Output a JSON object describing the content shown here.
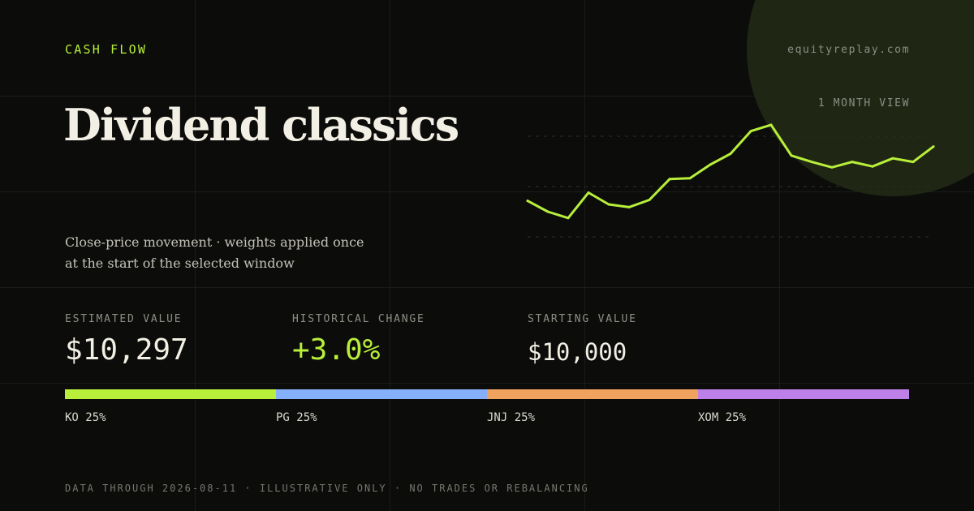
{
  "header": {
    "eyebrow": "CASH FLOW",
    "site": "equityreplay.com",
    "title": "Dividend classics",
    "subtitle_line1": "Close-price movement · weights applied once",
    "subtitle_line2": "at the start of the selected window"
  },
  "chart_data": {
    "type": "line",
    "view_label": "1 MONTH VIEW",
    "x_label": "",
    "y_label": "",
    "grid": true,
    "legend": "none",
    "line_color": "#b8ef3a",
    "series": [
      {
        "values": [
          47,
          35,
          28,
          56,
          43,
          40,
          48,
          71,
          72,
          87,
          99,
          124,
          131,
          97,
          90,
          84,
          90,
          85,
          94,
          90,
          107
        ]
      }
    ],
    "ylim": [
      0,
      130
    ]
  },
  "stats": [
    {
      "label": "ESTIMATED VALUE",
      "value": "$10,297",
      "style": "default"
    },
    {
      "label": "HISTORICAL CHANGE",
      "value": "+3.0%",
      "style": "accent"
    },
    {
      "label": "STARTING VALUE",
      "value": "$10,000",
      "style": "small"
    }
  ],
  "allocation": [
    {
      "ticker": "KO",
      "weight": "25%",
      "fraction": 0.25,
      "color": "#b8ef3a"
    },
    {
      "ticker": "PG",
      "weight": "25%",
      "fraction": 0.25,
      "color": "#85aff8"
    },
    {
      "ticker": "JNJ",
      "weight": "25%",
      "fraction": 0.25,
      "color": "#f0a35e"
    },
    {
      "ticker": "XOM",
      "weight": "25%",
      "fraction": 0.25,
      "color": "#bd80e8"
    }
  ],
  "footer": "DATA THROUGH 2026-08-11 · ILLUSTRATIVE ONLY · NO TRADES OR REBALANCING"
}
